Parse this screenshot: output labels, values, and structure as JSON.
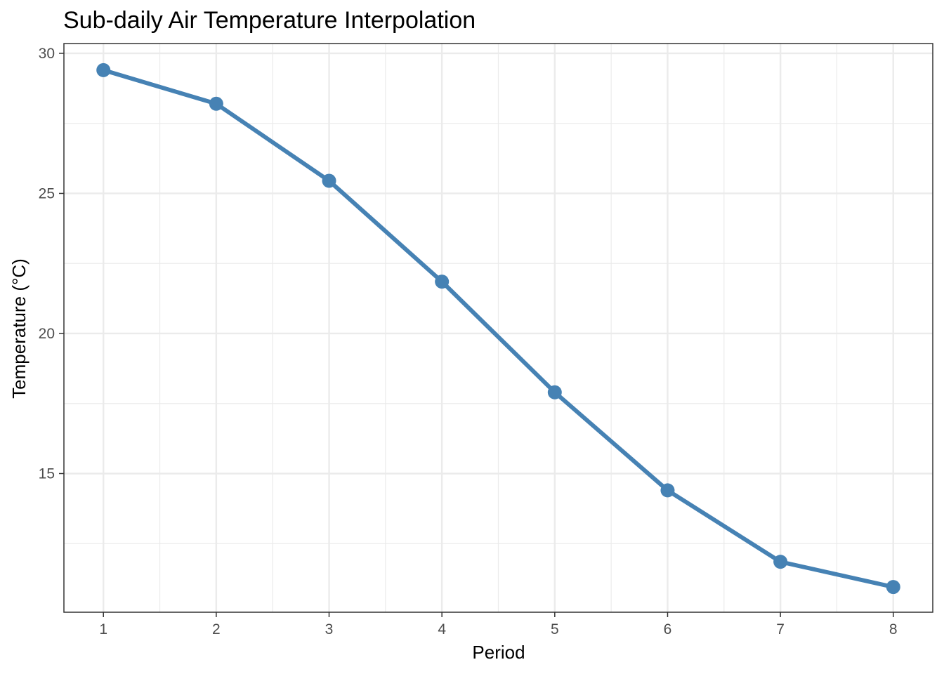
{
  "chart_data": {
    "type": "line",
    "title": "Sub-daily Air Temperature Interpolation",
    "xlabel": "Period",
    "ylabel": "Temperature (°C)",
    "x": [
      1,
      2,
      3,
      4,
      5,
      6,
      7,
      8
    ],
    "series": [
      {
        "values": [
          29.4,
          28.2,
          25.45,
          21.85,
          17.9,
          14.4,
          11.85,
          10.95
        ]
      }
    ],
    "x_ticks": [
      "1",
      "2",
      "3",
      "4",
      "5",
      "6",
      "7",
      "8"
    ],
    "y_ticks": [
      "15",
      "20",
      "25",
      "30"
    ],
    "xlim": [
      0.65,
      8.35
    ],
    "ylim": [
      10.05,
      30.35
    ],
    "grid": true,
    "legend": "none",
    "colors": {
      "series": "#4682b4",
      "grid": "#ebebeb",
      "panel_border": "#333333",
      "tick_label": "#4d4d4d",
      "text": "#000000"
    }
  }
}
